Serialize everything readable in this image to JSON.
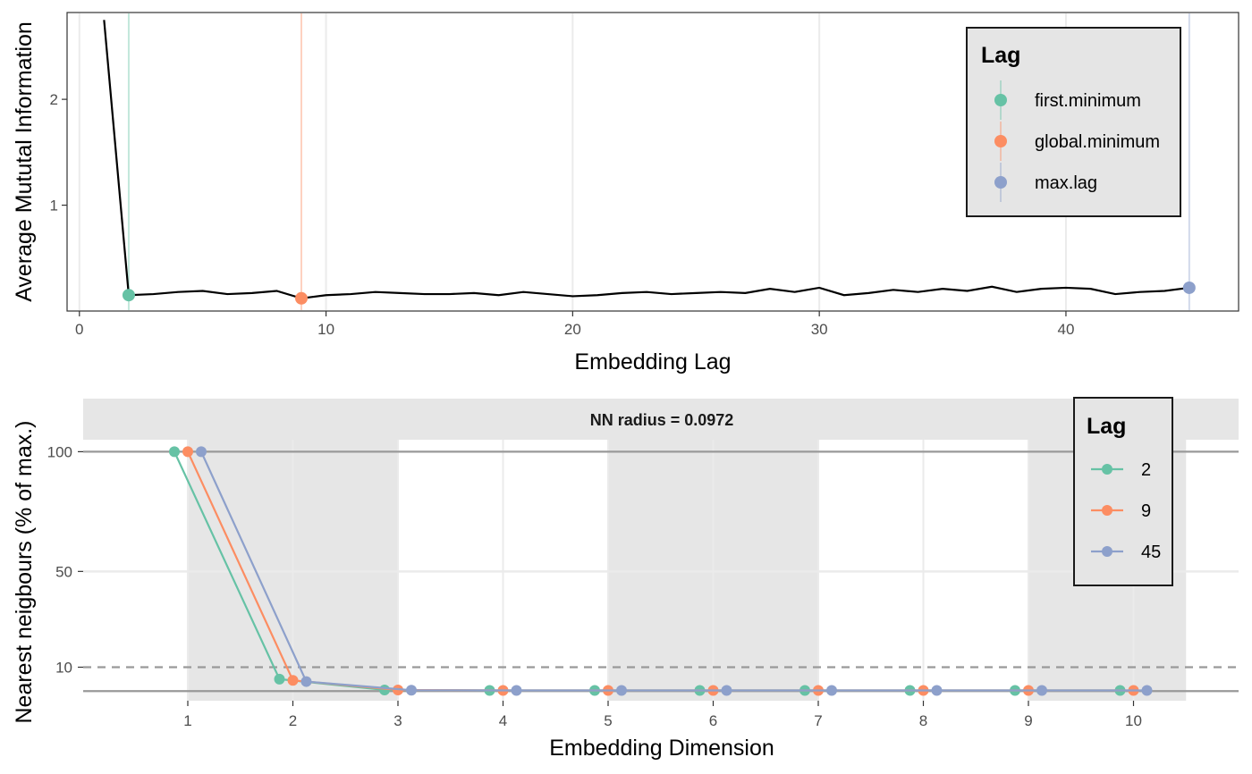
{
  "chart_data": [
    {
      "type": "line",
      "xlabel": "Embedding Lag",
      "ylabel": "Average Mututal Information",
      "xlim": [
        -0.5,
        47.0
      ],
      "ylim": [
        0.0,
        2.82
      ],
      "x_ticks": [
        0,
        10,
        20,
        30,
        40
      ],
      "y_ticks": [
        1,
        2
      ],
      "grid": true,
      "ami_series": {
        "x": [
          1,
          2,
          3,
          4,
          5,
          6,
          7,
          8,
          9,
          10,
          11,
          12,
          13,
          14,
          15,
          16,
          17,
          18,
          19,
          20,
          21,
          22,
          23,
          24,
          25,
          26,
          27,
          28,
          29,
          30,
          31,
          32,
          33,
          34,
          35,
          36,
          37,
          38,
          39,
          40,
          41,
          42,
          43,
          44,
          45
        ],
        "y": [
          2.75,
          0.15,
          0.16,
          0.18,
          0.19,
          0.16,
          0.17,
          0.19,
          0.12,
          0.15,
          0.16,
          0.18,
          0.17,
          0.16,
          0.16,
          0.17,
          0.15,
          0.18,
          0.16,
          0.14,
          0.15,
          0.17,
          0.18,
          0.16,
          0.17,
          0.18,
          0.17,
          0.21,
          0.18,
          0.22,
          0.15,
          0.17,
          0.2,
          0.18,
          0.21,
          0.19,
          0.23,
          0.18,
          0.21,
          0.22,
          0.21,
          0.16,
          0.18,
          0.19,
          0.22
        ]
      },
      "lag_markers": [
        {
          "name": "first.minimum",
          "lag": 2,
          "value": 0.15,
          "color": "#66c2a5"
        },
        {
          "name": "global.minimum",
          "lag": 9,
          "value": 0.12,
          "color": "#fc8d62"
        },
        {
          "name": "max.lag",
          "lag": 45,
          "value": 0.22,
          "color": "#8da0cb"
        }
      ],
      "legend": {
        "title": "Lag",
        "placement": "top-right"
      }
    },
    {
      "type": "line",
      "strip_label": "NN radius = 0.0972",
      "xlabel": "Embedding Dimension",
      "ylabel": "Nearest neigbours (% of max.)",
      "categories": [
        1,
        2,
        3,
        4,
        5,
        6,
        7,
        8,
        9,
        10
      ],
      "y_ticks": [
        10,
        50,
        100
      ],
      "ylim": [
        -4,
        105
      ],
      "reference_lines": [
        {
          "y": 100,
          "style": "solid"
        },
        {
          "y": 0,
          "style": "solid"
        },
        {
          "y": 10,
          "style": "dashed"
        }
      ],
      "series": [
        {
          "name": "2",
          "color": "#66c2a5",
          "values": [
            100,
            5,
            0.5,
            0.3,
            0.3,
            0.3,
            0.3,
            0.3,
            0.3,
            0.3
          ]
        },
        {
          "name": "9",
          "color": "#fc8d62",
          "values": [
            100,
            4.5,
            0.5,
            0.3,
            0.3,
            0.3,
            0.3,
            0.3,
            0.3,
            0.3
          ]
        },
        {
          "name": "45",
          "color": "#8da0cb",
          "values": [
            100,
            4,
            0.4,
            0.3,
            0.3,
            0.3,
            0.3,
            0.3,
            0.3,
            0.3
          ]
        }
      ],
      "legend": {
        "title": "Lag",
        "placement": "top-right"
      }
    }
  ]
}
